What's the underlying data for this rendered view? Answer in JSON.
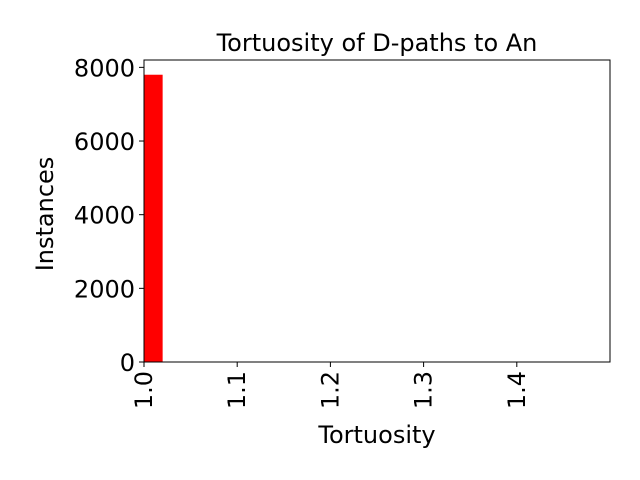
{
  "chart_data": {
    "type": "bar",
    "title": "Tortuosity of D-paths to An",
    "xlabel": "Tortuosity",
    "ylabel": "Instances",
    "xlim": [
      1.0,
      1.5
    ],
    "ylim": [
      0,
      8200
    ],
    "x_ticks": [
      1.0,
      1.1,
      1.2,
      1.3,
      1.4
    ],
    "x_tick_labels": [
      "1.0",
      "1.1",
      "1.2",
      "1.3",
      "1.4"
    ],
    "y_ticks": [
      0,
      2000,
      4000,
      6000,
      8000
    ],
    "y_tick_labels": [
      "0",
      "2000",
      "4000",
      "6000",
      "8000"
    ],
    "bars": [
      {
        "x_start": 1.0,
        "x_end": 1.02,
        "value": 7800
      }
    ],
    "bar_color": "#ff0000",
    "grid": false,
    "legend": false
  }
}
